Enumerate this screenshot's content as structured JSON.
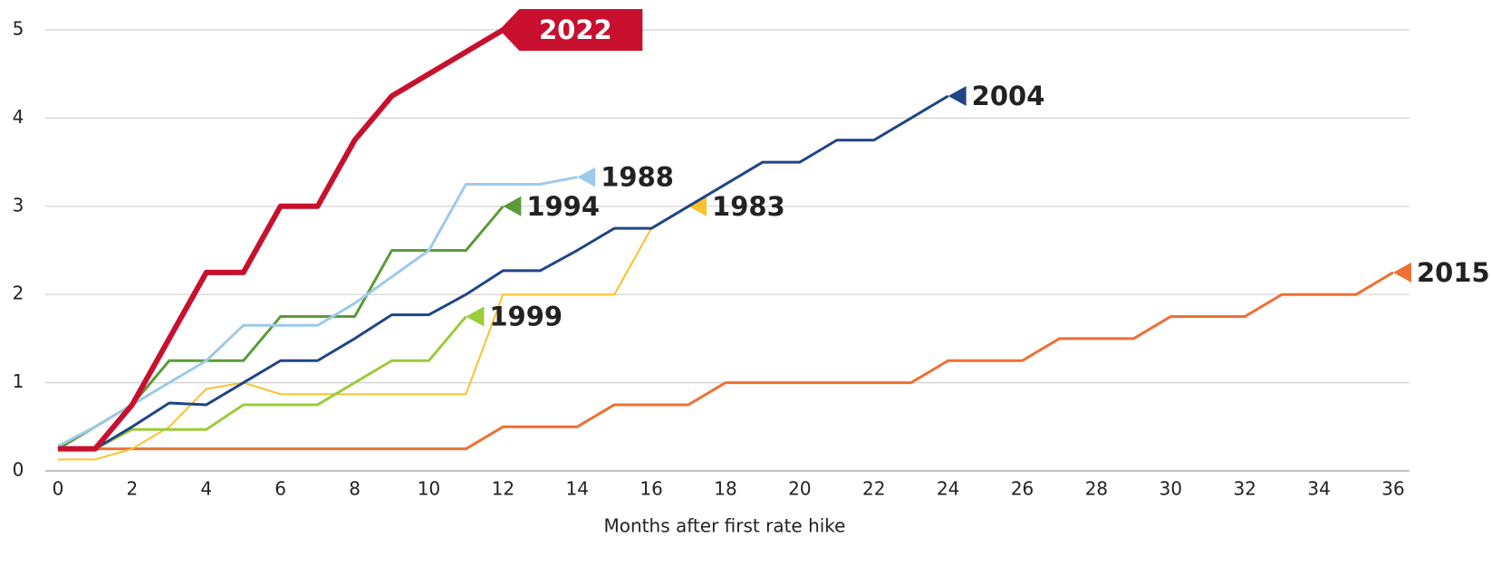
{
  "chart_data": {
    "type": "line",
    "x_label": "Months after first rate hike",
    "x": [
      0,
      1,
      2,
      3,
      4,
      5,
      6,
      7,
      8,
      9,
      10,
      11,
      12,
      13,
      14,
      15,
      16,
      17,
      18,
      19,
      20,
      21,
      22,
      23,
      24,
      25,
      26,
      27,
      28,
      29,
      30,
      31,
      32,
      33,
      34,
      35,
      36
    ],
    "xlim": [
      0,
      36
    ],
    "xticks": [
      0,
      2,
      4,
      6,
      8,
      10,
      12,
      14,
      16,
      18,
      20,
      22,
      24,
      26,
      28,
      30,
      32,
      34,
      36
    ],
    "ylim": [
      0,
      5
    ],
    "yticks": [
      0,
      1,
      2,
      3,
      4,
      5
    ],
    "grid": true,
    "series": [
      {
        "name": "2015",
        "color": "#ee7032",
        "width": 3,
        "values": [
          0.25,
          0.25,
          0.25,
          0.25,
          0.25,
          0.25,
          0.25,
          0.25,
          0.25,
          0.25,
          0.25,
          0.25,
          0.5,
          0.5,
          0.5,
          0.75,
          0.75,
          0.75,
          1,
          1,
          1,
          1,
          1,
          1,
          1.25,
          1.25,
          1.25,
          1.5,
          1.5,
          1.5,
          1.75,
          1.75,
          1.75,
          2,
          2,
          2,
          2.25
        ]
      },
      {
        "name": "1983",
        "color": "#fbc02d",
        "width": 2,
        "values": [
          0.13,
          0.13,
          0.25,
          0.5,
          0.93,
          1,
          0.87,
          0.87,
          0.87,
          0.87,
          0.87,
          0.87,
          2,
          2,
          2,
          2,
          2.75,
          3,
          null,
          null,
          null,
          null,
          null,
          null,
          null,
          null,
          null,
          null,
          null,
          null,
          null,
          null,
          null,
          null,
          null,
          null,
          null
        ]
      },
      {
        "name": "1999",
        "color": "#9ccb3b",
        "width": 3,
        "values": [
          0.25,
          0.25,
          0.47,
          0.47,
          0.47,
          0.75,
          0.75,
          0.75,
          1,
          1.25,
          1.25,
          1.75,
          null,
          null,
          null,
          null,
          null,
          null,
          null,
          null,
          null,
          null,
          null,
          null,
          null,
          null,
          null,
          null,
          null,
          null,
          null,
          null,
          null,
          null,
          null,
          null,
          null
        ]
      },
      {
        "name": "2004",
        "color": "#1f4586",
        "width": 3,
        "values": [
          0.25,
          0.25,
          0.5,
          0.77,
          0.75,
          1,
          1.25,
          1.25,
          1.5,
          1.77,
          1.77,
          2,
          2.27,
          2.27,
          2.5,
          2.75,
          2.75,
          3,
          3.25,
          3.5,
          3.5,
          3.75,
          3.75,
          4,
          4.25,
          null,
          null,
          null,
          null,
          null,
          null,
          null,
          null,
          null,
          null,
          null,
          null
        ]
      },
      {
        "name": "1994",
        "color": "#5c9a3a",
        "width": 3,
        "values": [
          0.25,
          0.5,
          0.75,
          1.25,
          1.25,
          1.25,
          1.75,
          1.75,
          1.75,
          2.5,
          2.5,
          2.5,
          3,
          null,
          null,
          null,
          null,
          null,
          null,
          null,
          null,
          null,
          null,
          null,
          null,
          null,
          null,
          null,
          null,
          null,
          null,
          null,
          null,
          null,
          null,
          null,
          null
        ]
      },
      {
        "name": "1988",
        "color": "#9ecae9",
        "width": 3,
        "values": [
          0.28,
          0.5,
          0.75,
          1,
          1.25,
          1.65,
          1.65,
          1.65,
          1.9,
          2.2,
          2.5,
          3.25,
          3.25,
          3.25,
          3.33,
          null,
          null,
          null,
          null,
          null,
          null,
          null,
          null,
          null,
          null,
          null,
          null,
          null,
          null,
          null,
          null,
          null,
          null,
          null,
          null,
          null,
          null
        ]
      },
      {
        "name": "2022",
        "color": "#c8102e",
        "width": 6,
        "highlight": true,
        "values": [
          0.25,
          0.25,
          0.75,
          1.5,
          2.25,
          2.25,
          3,
          3,
          3.75,
          4.25,
          4.5,
          4.75,
          5,
          null,
          null,
          null,
          null,
          null,
          null,
          null,
          null,
          null,
          null,
          null,
          null,
          null,
          null,
          null,
          null,
          null,
          null,
          null,
          null,
          null,
          null,
          null,
          null
        ]
      }
    ]
  }
}
